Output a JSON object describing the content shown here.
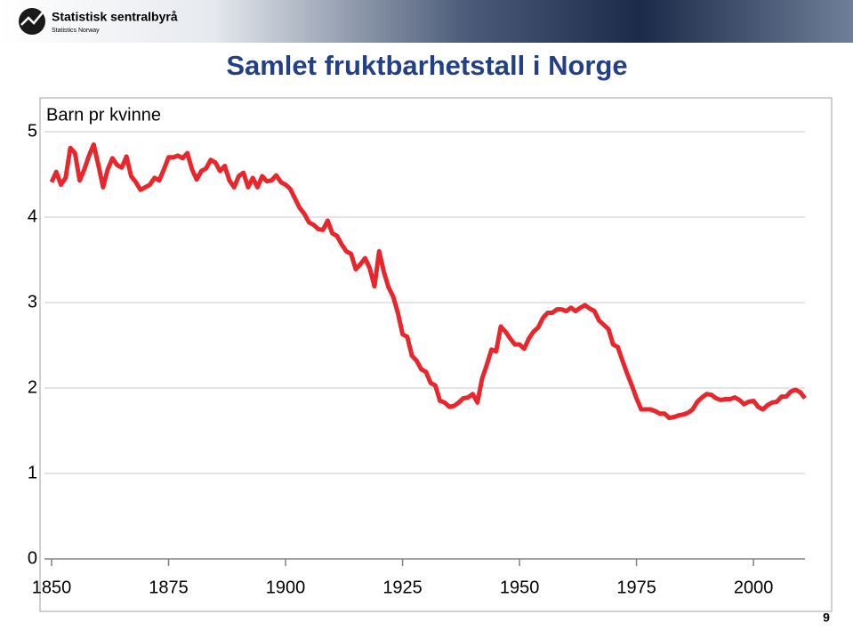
{
  "header": {
    "logo_name": "Statistisk sentralbyrå",
    "logo_sub": "Statistics Norway"
  },
  "page_number": "9",
  "chart_data": {
    "type": "line",
    "title": "Samlet fruktbarhetstall i Norge",
    "y_label": "Barn pr kvinne",
    "x": [
      1850,
      1851,
      1852,
      1853,
      1854,
      1855,
      1856,
      1857,
      1858,
      1859,
      1860,
      1861,
      1862,
      1863,
      1864,
      1865,
      1866,
      1867,
      1868,
      1869,
      1870,
      1871,
      1872,
      1873,
      1874,
      1875,
      1876,
      1877,
      1878,
      1879,
      1880,
      1881,
      1882,
      1883,
      1884,
      1885,
      1886,
      1887,
      1888,
      1889,
      1890,
      1891,
      1892,
      1893,
      1894,
      1895,
      1896,
      1897,
      1898,
      1899,
      1900,
      1901,
      1902,
      1903,
      1904,
      1905,
      1906,
      1907,
      1908,
      1909,
      1910,
      1911,
      1912,
      1913,
      1914,
      1915,
      1916,
      1917,
      1918,
      1919,
      1920,
      1921,
      1922,
      1923,
      1924,
      1925,
      1926,
      1927,
      1928,
      1929,
      1930,
      1931,
      1932,
      1933,
      1934,
      1935,
      1936,
      1937,
      1938,
      1939,
      1940,
      1941,
      1942,
      1943,
      1944,
      1945,
      1946,
      1947,
      1948,
      1949,
      1950,
      1951,
      1952,
      1953,
      1954,
      1955,
      1956,
      1957,
      1958,
      1959,
      1960,
      1961,
      1962,
      1963,
      1964,
      1965,
      1966,
      1967,
      1968,
      1969,
      1970,
      1971,
      1972,
      1973,
      1974,
      1975,
      1976,
      1977,
      1978,
      1979,
      1980,
      1981,
      1982,
      1983,
      1984,
      1985,
      1986,
      1987,
      1988,
      1989,
      1990,
      1991,
      1992,
      1993,
      1994,
      1995,
      1996,
      1997,
      1998,
      1999,
      2000,
      2001,
      2002,
      2003,
      2004,
      2005,
      2006,
      2007,
      2008,
      2009,
      2010,
      2011
    ],
    "series": [
      {
        "color": "#e8262b",
        "values": [
          4.41,
          4.53,
          4.38,
          4.46,
          4.81,
          4.75,
          4.43,
          4.56,
          4.72,
          4.85,
          4.61,
          4.35,
          4.56,
          4.69,
          4.61,
          4.58,
          4.71,
          4.48,
          4.41,
          4.32,
          4.35,
          4.38,
          4.46,
          4.43,
          4.56,
          4.7,
          4.7,
          4.72,
          4.69,
          4.75,
          4.56,
          4.44,
          4.54,
          4.57,
          4.67,
          4.64,
          4.54,
          4.6,
          4.43,
          4.35,
          4.48,
          4.52,
          4.35,
          4.46,
          4.35,
          4.48,
          4.42,
          4.43,
          4.49,
          4.41,
          4.38,
          4.33,
          4.22,
          4.11,
          4.04,
          3.94,
          3.91,
          3.86,
          3.85,
          3.96,
          3.81,
          3.78,
          3.68,
          3.6,
          3.57,
          3.39,
          3.45,
          3.52,
          3.4,
          3.19,
          3.6,
          3.36,
          3.18,
          3.07,
          2.88,
          2.63,
          2.6,
          2.38,
          2.32,
          2.22,
          2.19,
          2.06,
          2.03,
          1.85,
          1.83,
          1.78,
          1.79,
          1.83,
          1.88,
          1.89,
          1.93,
          1.83,
          2.11,
          2.27,
          2.45,
          2.43,
          2.72,
          2.66,
          2.58,
          2.51,
          2.51,
          2.46,
          2.58,
          2.66,
          2.71,
          2.82,
          2.88,
          2.88,
          2.92,
          2.92,
          2.9,
          2.94,
          2.9,
          2.94,
          2.97,
          2.93,
          2.9,
          2.79,
          2.74,
          2.69,
          2.51,
          2.48,
          2.32,
          2.17,
          2.03,
          1.88,
          1.75,
          1.75,
          1.75,
          1.73,
          1.7,
          1.7,
          1.65,
          1.66,
          1.68,
          1.69,
          1.71,
          1.75,
          1.84,
          1.89,
          1.93,
          1.92,
          1.88,
          1.86,
          1.87,
          1.87,
          1.89,
          1.86,
          1.81,
          1.84,
          1.85,
          1.78,
          1.75,
          1.8,
          1.83,
          1.84,
          1.9,
          1.9,
          1.96,
          1.98,
          1.95,
          1.88
        ]
      }
    ],
    "xlim": [
      1850,
      2011
    ],
    "xticks": [
      1850,
      1875,
      1900,
      1925,
      1950,
      1975,
      2000
    ],
    "ylim": [
      0,
      5
    ],
    "yticks": [
      0,
      1,
      2,
      3,
      4,
      5
    ],
    "grid": true
  }
}
